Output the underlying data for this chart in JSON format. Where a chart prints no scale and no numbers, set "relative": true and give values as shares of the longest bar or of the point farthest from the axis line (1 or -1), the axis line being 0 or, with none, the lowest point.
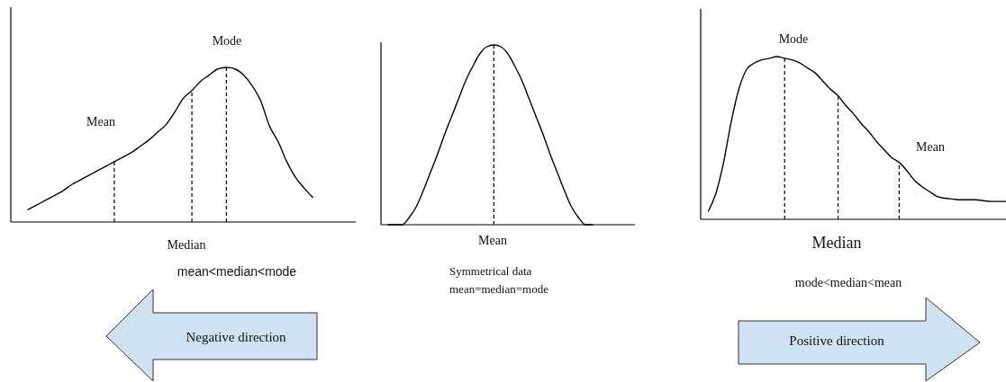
{
  "chart_data": [
    {
      "type": "line",
      "relative": true,
      "categories": [
        null,
        null,
        null,
        null,
        null,
        null,
        null,
        null,
        null,
        null,
        null,
        null,
        null,
        null,
        null,
        null,
        null,
        null,
        null,
        null,
        null,
        null,
        null,
        null,
        null,
        null,
        null,
        null,
        null,
        null,
        null,
        null,
        null,
        null,
        null,
        null,
        null,
        null,
        null,
        null,
        null
      ],
      "series": [
        {
          "color": "#000000",
          "values": [
            null,
            null,
            0.08,
            0.11,
            0.14,
            0.17,
            0.2,
            0.24,
            0.27,
            0.3,
            0.33,
            0.36,
            0.39,
            0.42,
            0.45,
            0.49,
            0.53,
            0.58,
            0.63,
            0.71,
            0.8,
            0.85,
            0.91,
            0.95,
            0.99,
            1,
            0.99,
            0.95,
            0.88,
            0.78,
            0.62,
            0.52,
            0.39,
            0.29,
            0.22,
            0.16,
            null,
            null,
            null,
            null,
            null
          ]
        }
      ],
      "annotations": [
        "Mean",
        "Median",
        "Mode",
        "mean<median<mode",
        "Negative direction"
      ]
    },
    {
      "type": "line",
      "relative": true,
      "categories": [
        null,
        null,
        null,
        null,
        null,
        null,
        null,
        null,
        null,
        null,
        null,
        null,
        null,
        null,
        null,
        null,
        null,
        null,
        null,
        null,
        null,
        null,
        null,
        null,
        null,
        null,
        null,
        null,
        null,
        null,
        null,
        null,
        null,
        null,
        null,
        null,
        null
      ],
      "series": [
        {
          "color": "#000000",
          "values": [
            null,
            0,
            0,
            0,
            0.04,
            0.1,
            0.19,
            0.29,
            0.39,
            0.5,
            0.6,
            0.7,
            0.8,
            0.88,
            0.95,
            0.99,
            1,
            0.99,
            0.95,
            0.88,
            0.8,
            0.7,
            0.6,
            0.5,
            0.39,
            0.29,
            0.19,
            0.1,
            0.04,
            0,
            0,
            null,
            null,
            null,
            null,
            null,
            null
          ]
        }
      ],
      "annotations": [
        "Mean",
        "Symmetrical data",
        "mean=median=mode"
      ]
    },
    {
      "type": "line",
      "relative": true,
      "categories": [
        null,
        null,
        null,
        null,
        null,
        null,
        null,
        null,
        null,
        null,
        null,
        null,
        null,
        null,
        null,
        null,
        null,
        null,
        null,
        null,
        null,
        null,
        null,
        null,
        null,
        null,
        null,
        null,
        null,
        null,
        null,
        null,
        null,
        null,
        null,
        null,
        null,
        null,
        null,
        null,
        null
      ],
      "series": [
        {
          "color": "#000000",
          "values": [
            null,
            0.05,
            0.16,
            0.35,
            0.6,
            0.8,
            0.92,
            0.96,
            0.98,
            0.99,
            1,
            0.99,
            0.98,
            0.96,
            0.93,
            0.9,
            0.85,
            0.8,
            0.76,
            0.7,
            0.65,
            0.59,
            0.54,
            0.48,
            0.43,
            0.38,
            0.35,
            0.3,
            0.24,
            0.2,
            0.17,
            0.14,
            0.13,
            0.125,
            0.12,
            0.12,
            0.12,
            0.115,
            0.11,
            0.11,
            0.11
          ]
        }
      ],
      "annotations": [
        "Mode",
        "Median",
        "Mean",
        "mode<median<mean",
        "Positive direction"
      ]
    }
  ]
}
